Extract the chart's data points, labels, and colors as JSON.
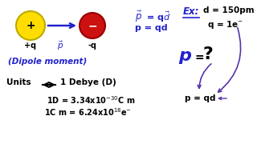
{
  "bg_color": "#ffffff",
  "blue_color": "#2222cc",
  "dark_navy": "#000080",
  "black": "#000000",
  "purple": "#5533aa",
  "red_circle": "#cc1111",
  "yellow_circle": "#ffdd00",
  "yellow_border": "#bbaa00",
  "red_border": "#990000",
  "arrow_blue": "#2233bb",
  "figsize": [
    3.2,
    1.8
  ],
  "dpi": 100,
  "xlim": [
    0,
    320
  ],
  "ylim": [
    0,
    180
  ]
}
